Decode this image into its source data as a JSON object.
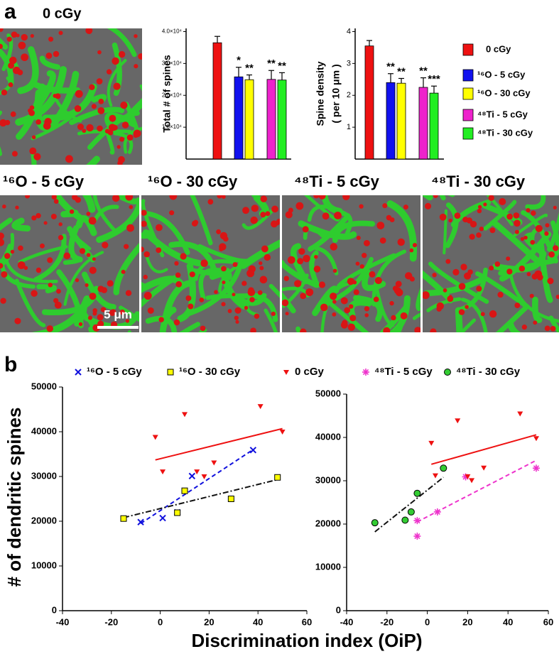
{
  "figure": {
    "panel_a": "a",
    "panel_b": "b",
    "images": [
      {
        "title": "0 cGy"
      },
      {
        "title": "¹⁶O - 5 cGy",
        "scale_bar": "5 μm"
      },
      {
        "title": "¹⁶O - 30 cGy"
      },
      {
        "title": "⁴⁸Ti - 5 cGy"
      },
      {
        "title": "⁴⁸Ti - 30 cGy"
      }
    ]
  },
  "chart_data": [
    {
      "type": "bar",
      "ylabel": "Total # of spines",
      "ylim": [
        0,
        41000
      ],
      "yticks": [
        {
          "value": 10000,
          "label": "1.0×10⁴"
        },
        {
          "value": 20000,
          "label": "2.0×10⁴"
        },
        {
          "value": 30000,
          "label": "3.0×10⁴"
        },
        {
          "value": 40000,
          "label": "4.0×10⁴"
        }
      ],
      "series": [
        {
          "name": "0 cGy",
          "color": "#ee1111",
          "values": [
            36500
          ],
          "errors": [
            2000
          ]
        },
        {
          "name": "¹⁶O - 5 cGy",
          "color": "#1111ee",
          "values": [
            25800
          ],
          "errors": [
            3000
          ],
          "significance": "*"
        },
        {
          "name": "¹⁶O - 30 cGy",
          "color": "#ffff00",
          "values": [
            24900
          ],
          "errors": [
            1500
          ],
          "significance": "**"
        },
        {
          "name": "⁴⁸Ti - 5 cGy",
          "color": "#ee22cc",
          "values": [
            25000
          ],
          "errors": [
            2800
          ],
          "significance": "**"
        },
        {
          "name": "⁴⁸Ti - 30 cGy",
          "color": "#22ee22",
          "values": [
            24800
          ],
          "errors": [
            2300
          ],
          "significance": "**"
        }
      ]
    },
    {
      "type": "bar",
      "ylabel": [
        "Spine density",
        "( per 10 μm )"
      ],
      "ylim": [
        0,
        4.1
      ],
      "yticks": [
        1,
        2,
        3,
        4
      ],
      "values": [
        3.55,
        2.4,
        2.38,
        2.25,
        2.07
      ],
      "errors": [
        0.17,
        0.28,
        0.15,
        0.3,
        0.22
      ],
      "colors": [
        "#ee1111",
        "#1111ee",
        "#ffff00",
        "#ee22cc",
        "#22ee22"
      ],
      "significance": [
        null,
        "**",
        "**",
        "**",
        "***"
      ]
    },
    {
      "type": "scatter",
      "ylabel": "# of dendritic spines",
      "xlabel": "Discrimination index (OiP)",
      "xlim": [
        -40,
        60
      ],
      "xticks": [
        -40,
        -20,
        0,
        20,
        40,
        60
      ],
      "ylim": [
        0,
        50000
      ],
      "yticks": [
        0,
        10000,
        20000,
        30000,
        40000,
        50000
      ],
      "series": [
        {
          "name": "¹⁶O - 5 cGy",
          "color": "#1111dd",
          "marker": "x",
          "x": [
            -8,
            1,
            13,
            38,
            7
          ],
          "values": [
            19800,
            20700,
            30100,
            35900,
            22000
          ],
          "fit": {
            "x": [
              -8,
              38
            ],
            "values": [
              19500,
              36000
            ],
            "color": "#1111dd",
            "dash": "dashed"
          }
        },
        {
          "name": "¹⁶O - 30 cGy",
          "color": "#ffff00",
          "marker": "square",
          "x": [
            -15,
            7,
            10,
            29,
            48
          ],
          "values": [
            20600,
            21900,
            26800,
            25000,
            29800
          ],
          "fit": {
            "x": [
              -15,
              48
            ],
            "values": [
              20800,
              29300
            ],
            "color": "#111111",
            "dash": "dashdot"
          }
        },
        {
          "name": "0 cGy",
          "color": "#ee1111",
          "marker": "triangle",
          "x": [
            -2,
            1,
            10,
            15,
            18,
            22,
            41,
            50
          ],
          "values": [
            38800,
            31100,
            43900,
            31100,
            30000,
            33100,
            45700,
            40000
          ],
          "fit": {
            "x": [
              -2,
              50
            ],
            "values": [
              33700,
              40700
            ],
            "color": "#ee1111",
            "dash": "solid"
          }
        }
      ]
    },
    {
      "type": "scatter",
      "xlim": [
        -40,
        60
      ],
      "xticks": [
        -40,
        -20,
        0,
        20,
        40,
        60
      ],
      "ylim": [
        0,
        50000
      ],
      "yticks": [
        0,
        10000,
        20000,
        30000,
        40000,
        50000
      ],
      "series": [
        {
          "name": "⁴⁸Ti - 5 cGy",
          "color": "#ee33cc",
          "marker": "star",
          "x": [
            -5,
            -5,
            5,
            19,
            54
          ],
          "values": [
            17200,
            20800,
            22800,
            30900,
            32900
          ],
          "fit": {
            "x": [
              -5,
              54
            ],
            "values": [
              20500,
              34700
            ],
            "color": "#ee33cc",
            "dash": "dashed"
          }
        },
        {
          "name": "⁴⁸Ti - 30 cGy",
          "color": "#33cc33",
          "marker": "circle",
          "x": [
            -26,
            -11,
            -8,
            -5,
            8
          ],
          "values": [
            20300,
            20900,
            22800,
            27100,
            32900
          ],
          "fit": {
            "x": [
              -26,
              8
            ],
            "values": [
              18200,
              30800
            ],
            "color": "#111111",
            "dash": "dashdot"
          }
        },
        {
          "color": "#ee1111",
          "marker": "triangle",
          "x": [
            2,
            4,
            15,
            20,
            22,
            28,
            46,
            54
          ],
          "values": [
            38700,
            31200,
            43900,
            31000,
            30100,
            33000,
            45500,
            39800
          ],
          "fit": {
            "x": [
              2,
              54
            ],
            "values": [
              33800,
              40600
            ],
            "color": "#ee1111",
            "dash": "solid"
          }
        }
      ]
    }
  ]
}
